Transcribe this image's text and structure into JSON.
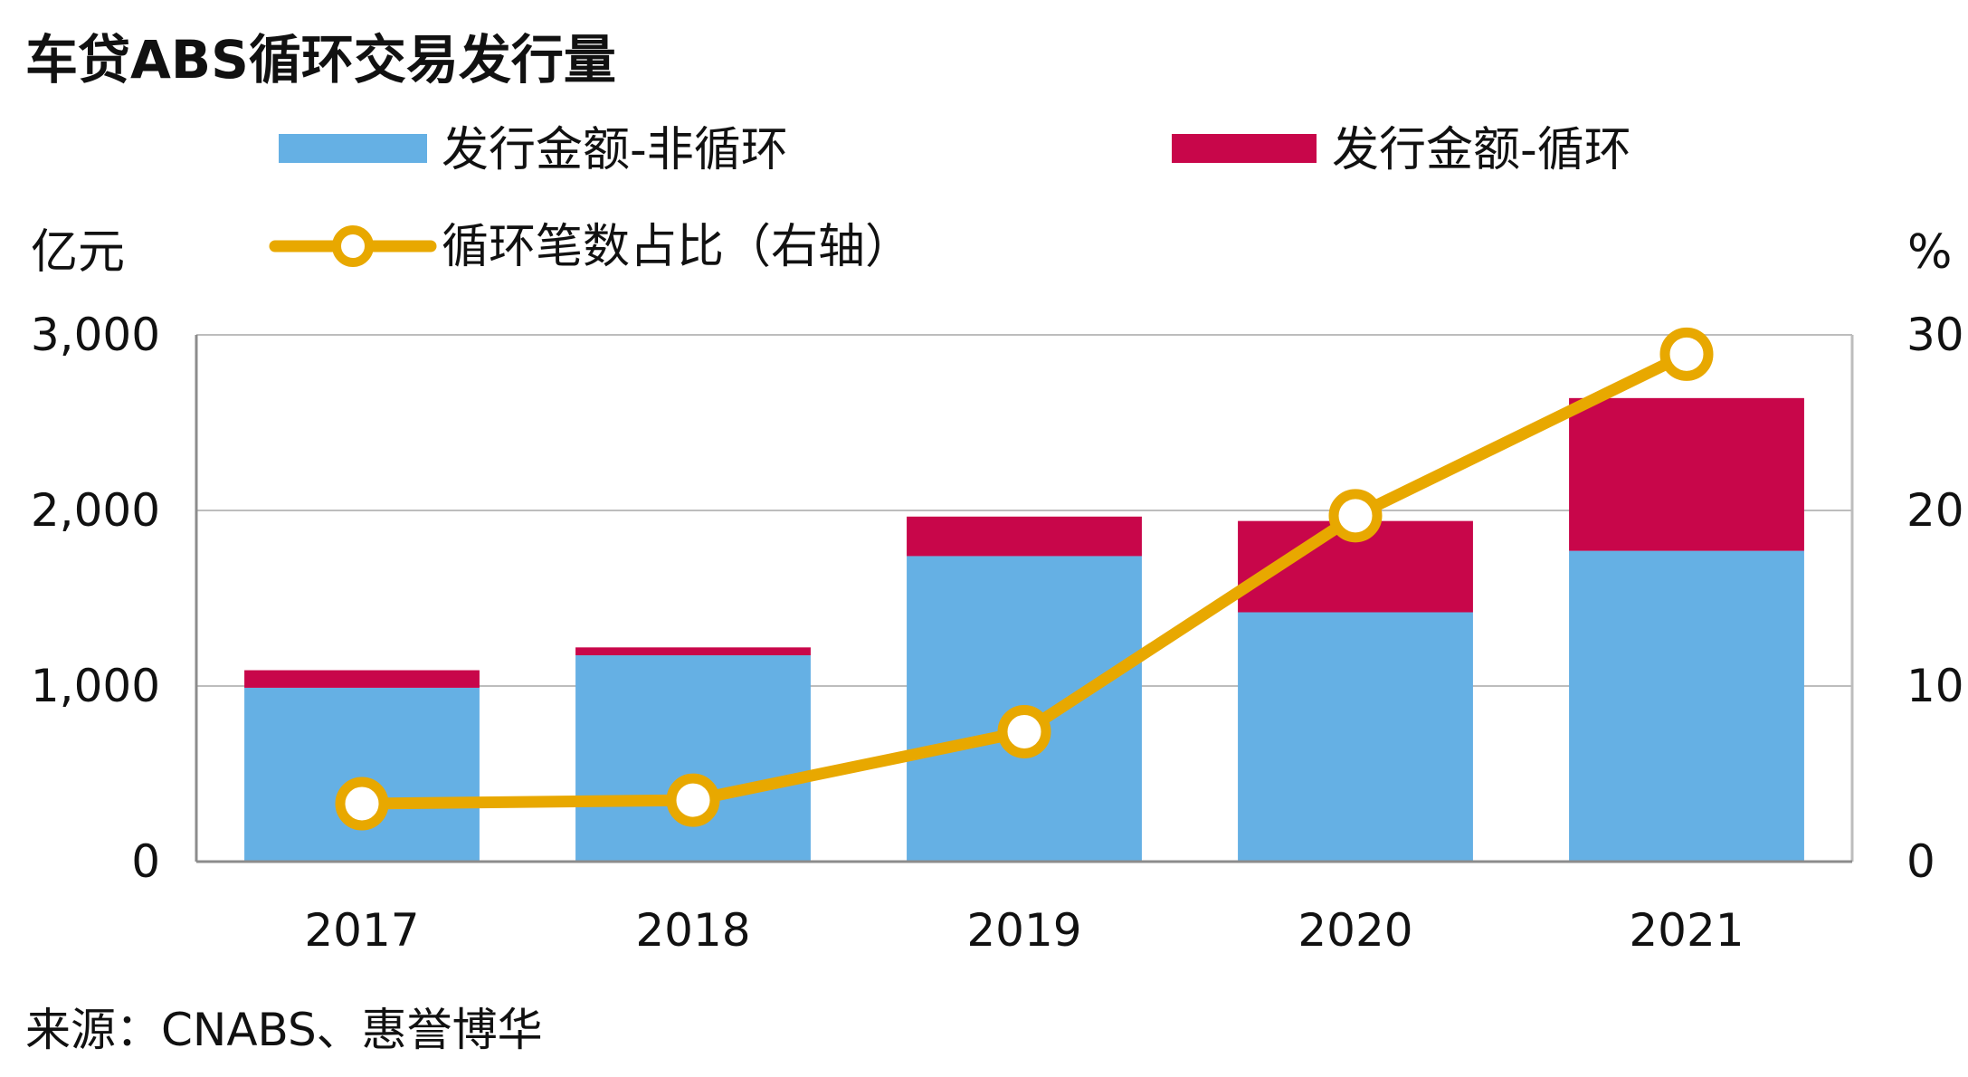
{
  "chart_data": {
    "type": "bar",
    "stacked": true,
    "title": "车贷ABS循环交易发行量",
    "categories": [
      "2017",
      "2018",
      "2019",
      "2020",
      "2021"
    ],
    "series": [
      {
        "name": "发行金额-非循环",
        "kind": "bar",
        "axis": "left",
        "color": "#65B0E4",
        "values": [
          990,
          1175,
          1740,
          1420,
          1770
        ]
      },
      {
        "name": "发行金额-循环",
        "kind": "bar",
        "axis": "left",
        "color": "#C8064A",
        "values": [
          100,
          45,
          225,
          520,
          870
        ]
      },
      {
        "name": "循环笔数占比（右轴）",
        "kind": "line",
        "axis": "right",
        "color": "#E8A800",
        "values": [
          3.3,
          3.5,
          7.4,
          19.7,
          28.9
        ]
      }
    ],
    "left_axis": {
      "unit": "亿元",
      "ylim": [
        0,
        3000
      ],
      "ticks": [
        0,
        1000,
        2000,
        3000
      ],
      "tick_labels": [
        "0",
        "1,000",
        "2,000",
        "3,000"
      ]
    },
    "right_axis": {
      "unit": "%",
      "ylim": [
        0,
        30
      ],
      "ticks": [
        0,
        10,
        20,
        30
      ],
      "tick_labels": [
        "0",
        "10",
        "20",
        "30"
      ]
    },
    "grid": true,
    "legend_position": "top",
    "source": "来源：CNABS、惠誉博华"
  }
}
